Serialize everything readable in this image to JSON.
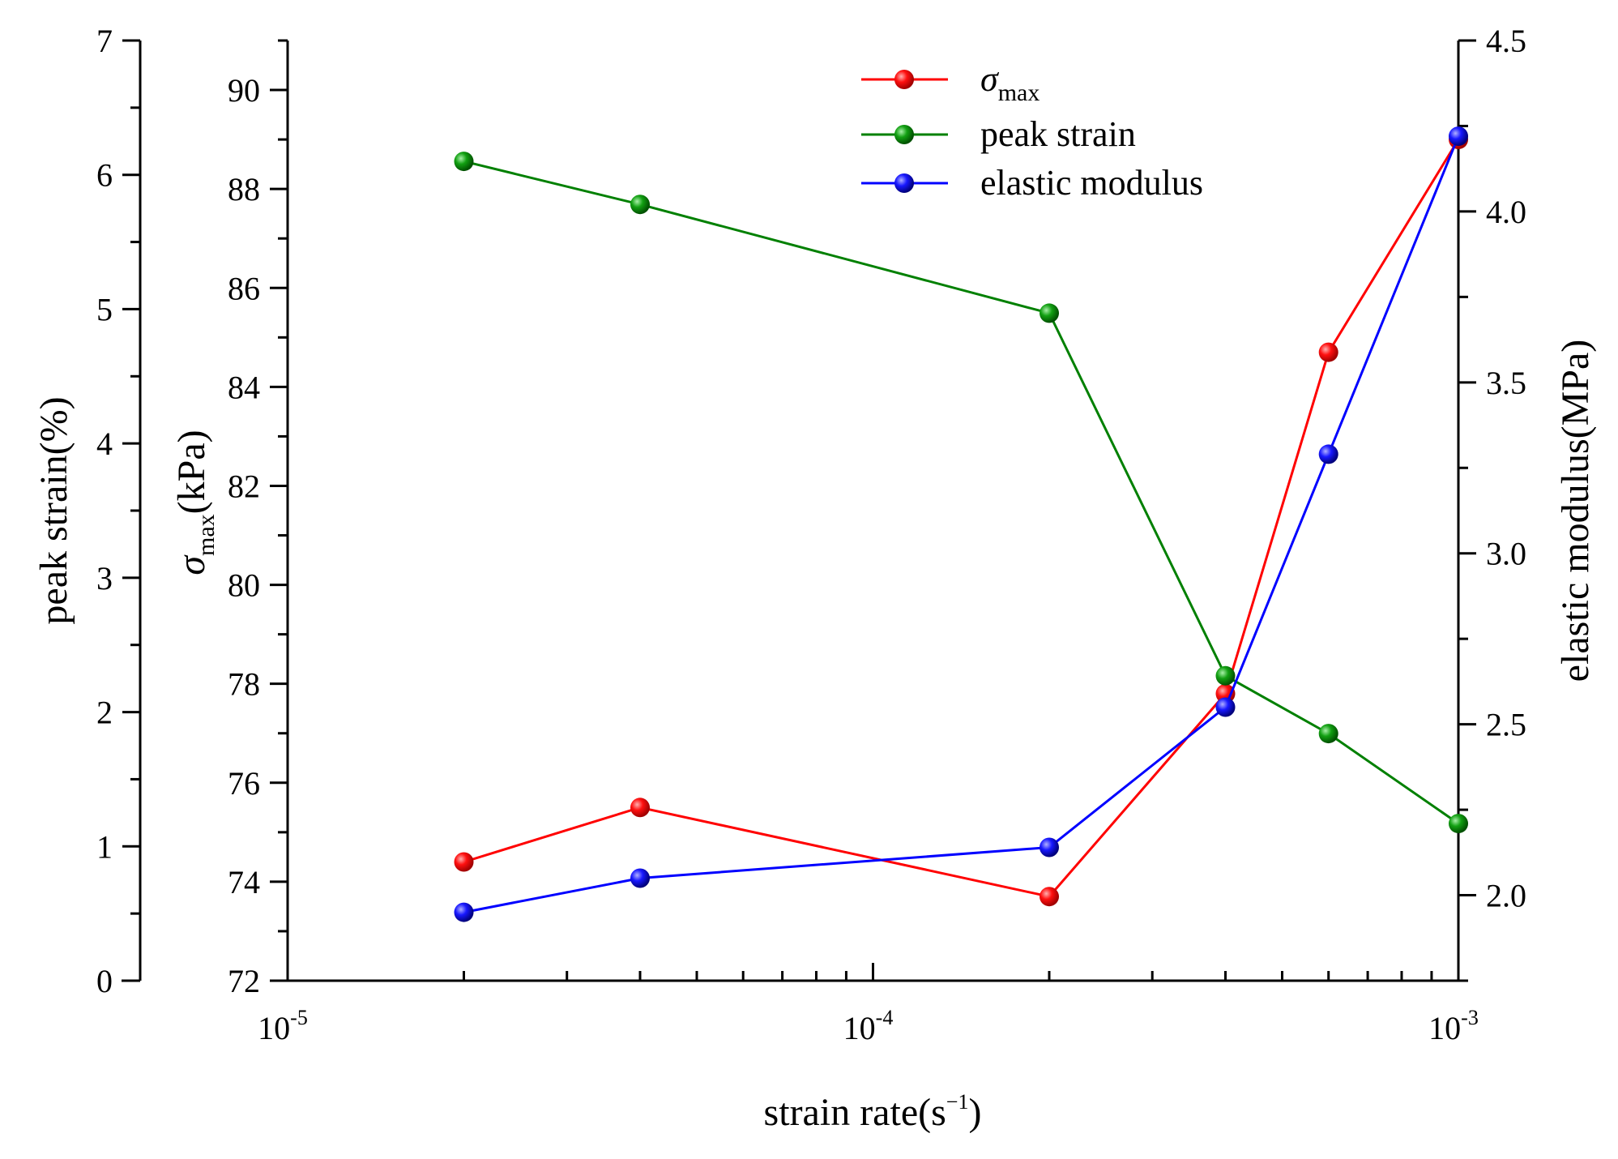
{
  "chart_data": {
    "type": "line",
    "xscale": "log",
    "x_axis": {
      "label": "strain rate(s",
      "label_sup": "−1",
      "label_close": ")",
      "range": [
        1e-05,
        0.001
      ],
      "major_ticks": [
        {
          "value": 1e-05,
          "base": "10",
          "exp": "-5"
        },
        {
          "value": 0.0001,
          "base": "10",
          "exp": "-4"
        },
        {
          "value": 0.001,
          "base": "10",
          "exp": "-3"
        }
      ]
    },
    "axes": {
      "peak_strain": {
        "label": "peak strain(%)",
        "range": [
          0,
          7
        ],
        "ticks": [
          "0",
          "1",
          "2",
          "3",
          "4",
          "5",
          "6",
          "7"
        ]
      },
      "sigma_max": {
        "label_symbol": "σ",
        "label_sub": "max",
        "label_unit": "(kPa)",
        "range": [
          72,
          91
        ],
        "ticks": [
          "72",
          "74",
          "76",
          "78",
          "80",
          "82",
          "84",
          "86",
          "88",
          "90"
        ]
      },
      "elastic_modulus": {
        "label": "elastic modulus(MPa)",
        "range": [
          1.75,
          4.5
        ],
        "ticks": [
          "2.0",
          "2.5",
          "3.0",
          "3.5",
          "4.0",
          "4.5"
        ]
      }
    },
    "series": [
      {
        "key": "sigma_max",
        "name_symbol": "σ",
        "name_sub": "max",
        "axis": "sigma_max",
        "color": "#ff0000",
        "x": [
          2e-05,
          4e-05,
          0.0002,
          0.0004,
          0.0006,
          0.001
        ],
        "values": [
          74.4,
          75.5,
          73.7,
          77.8,
          84.7,
          89.0
        ]
      },
      {
        "key": "peak_strain",
        "name": "peak strain",
        "axis": "peak_strain",
        "color": "#008000",
        "x": [
          2e-05,
          4e-05,
          0.0002,
          0.0004,
          0.0006,
          0.001
        ],
        "values": [
          6.1,
          5.78,
          4.97,
          2.27,
          1.84,
          1.17
        ]
      },
      {
        "key": "elastic_modulus",
        "name": "elastic modulus",
        "axis": "elastic_modulus",
        "color": "#0000ff",
        "x": [
          2e-05,
          4e-05,
          0.0002,
          0.0004,
          0.0006,
          0.001
        ],
        "values": [
          1.95,
          2.05,
          2.14,
          2.55,
          3.29,
          4.22
        ]
      }
    ],
    "legend_position": "top-center"
  }
}
